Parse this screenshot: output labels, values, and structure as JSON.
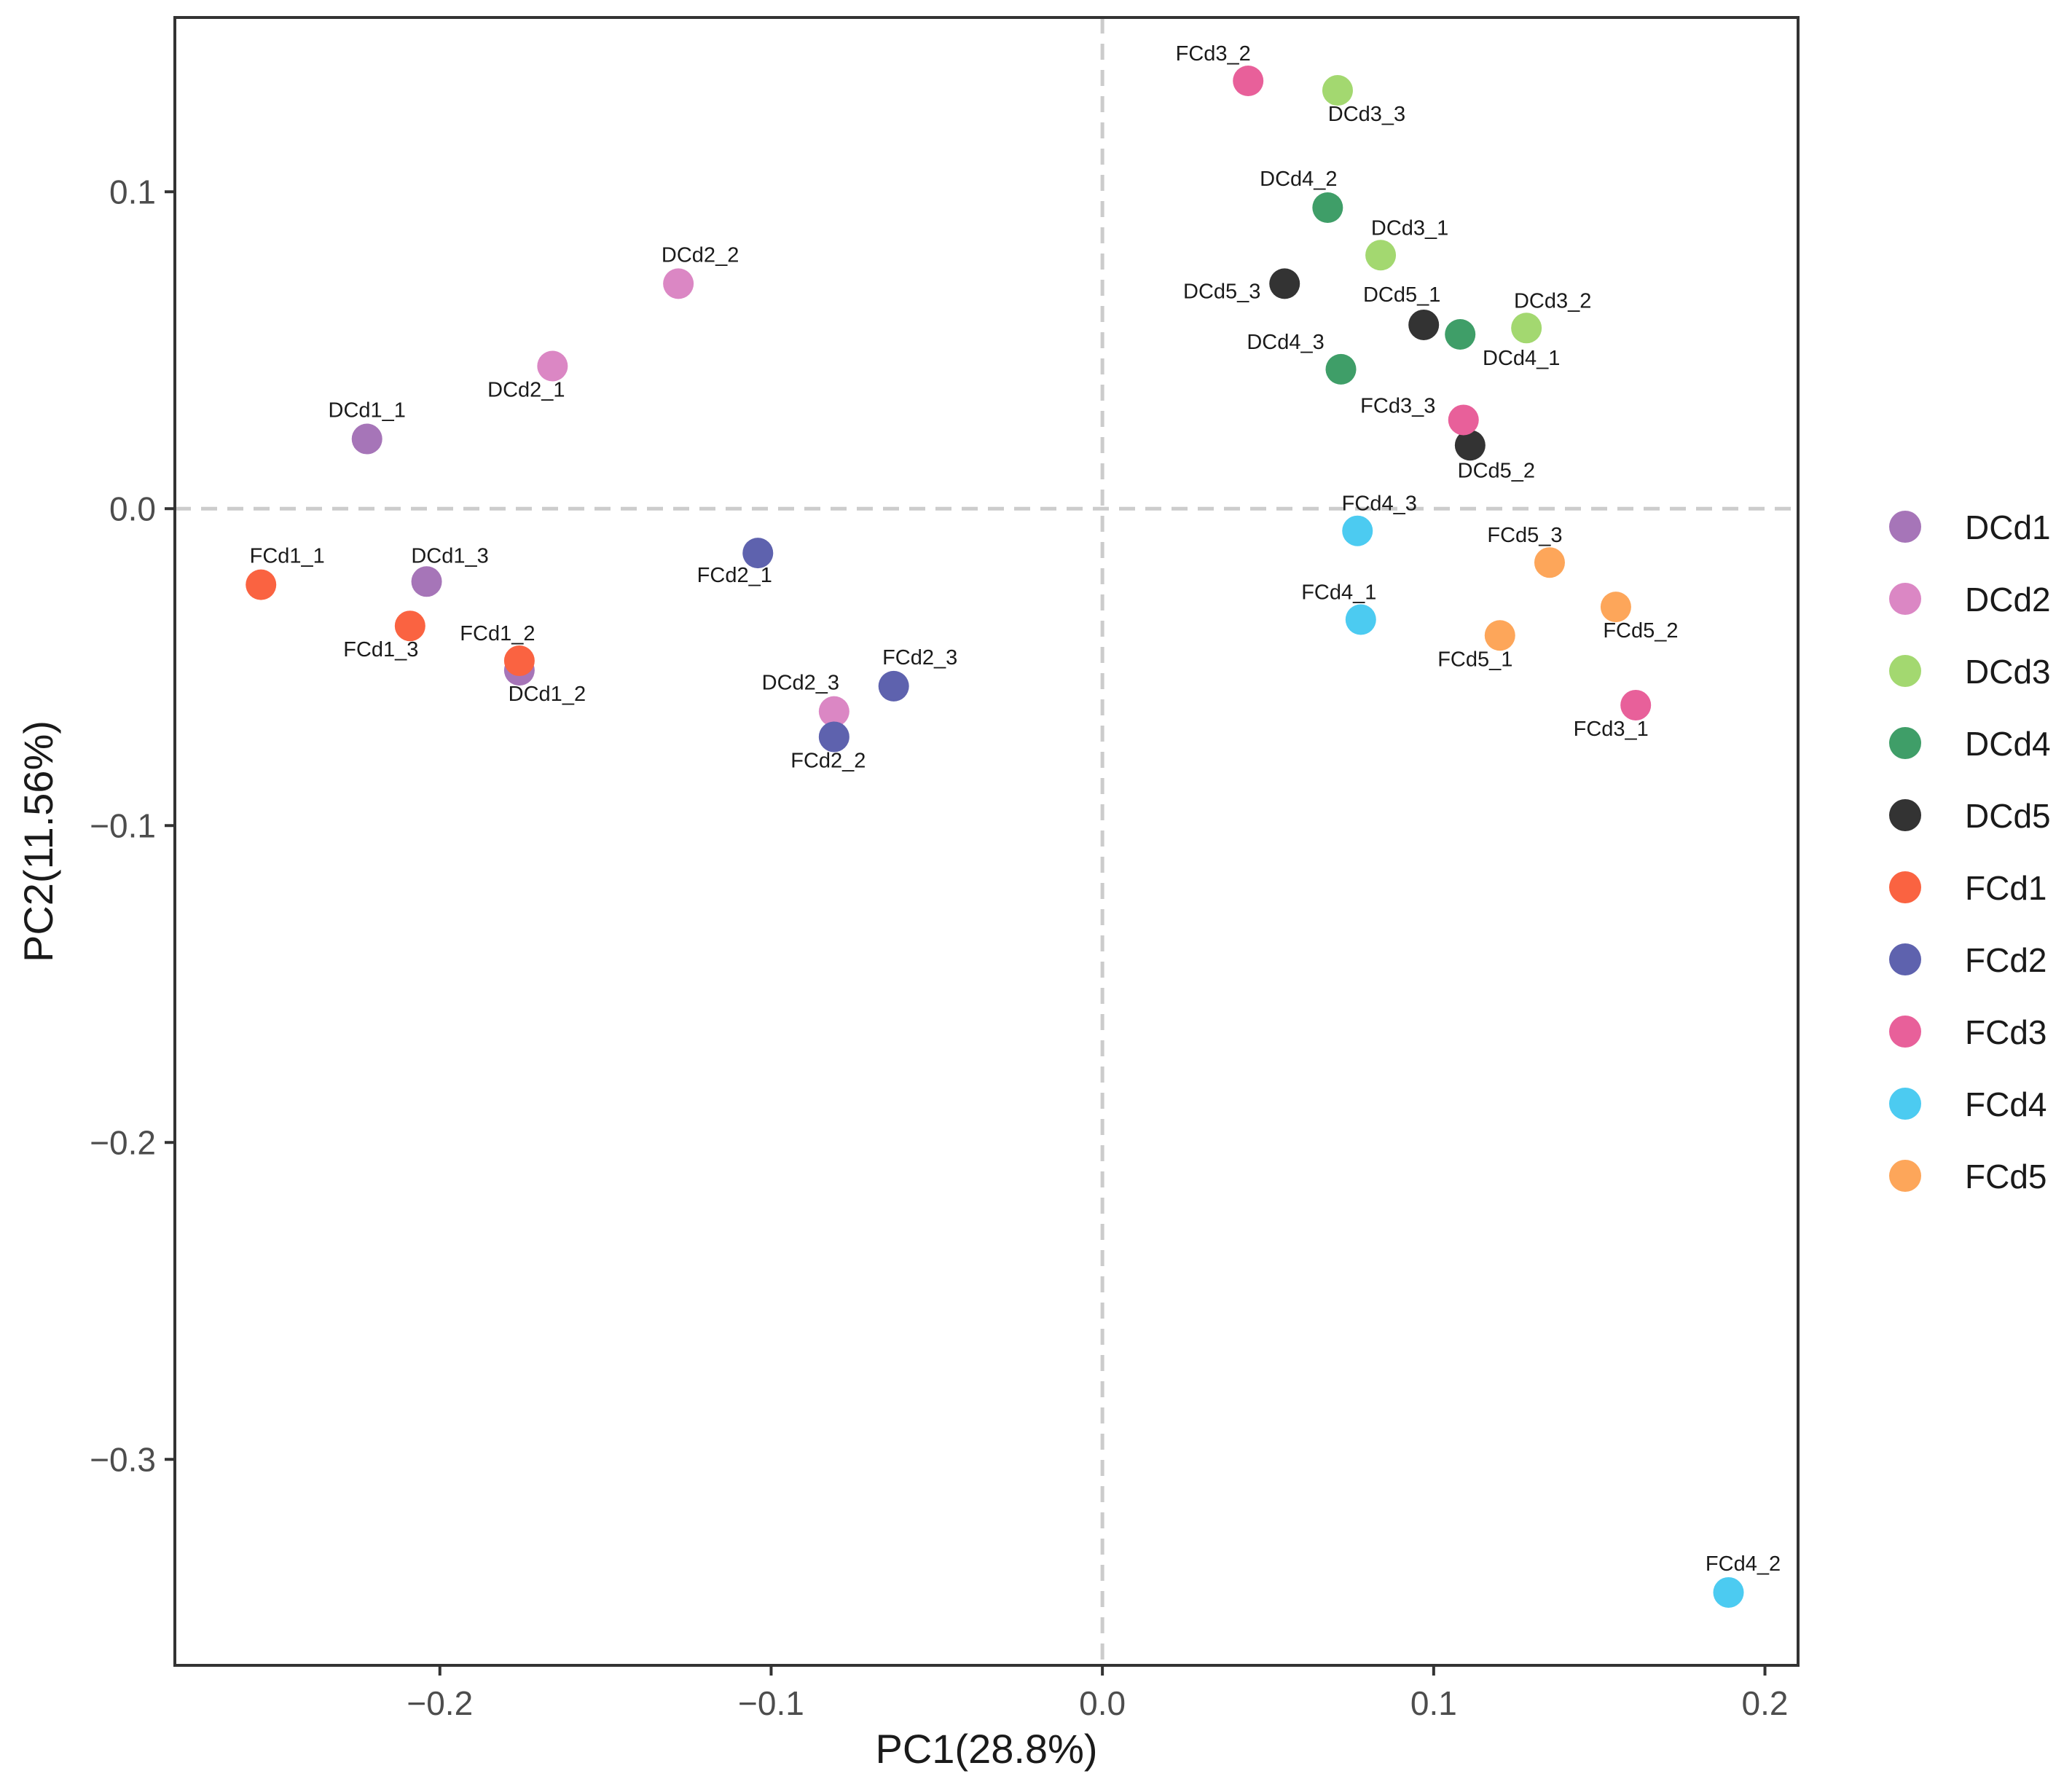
{
  "chart_data": {
    "type": "scatter",
    "title": "",
    "xlabel": "PC1(28.8%)",
    "ylabel": "PC2(11.56%)",
    "xlim": [
      -0.28,
      0.21
    ],
    "ylim": [
      -0.365,
      0.155
    ],
    "xticks": [
      -0.2,
      -0.1,
      0.0,
      0.1,
      0.2
    ],
    "xtick_labels": [
      "−0.2",
      "−0.1",
      "0.0",
      "0.1",
      "0.2"
    ],
    "yticks": [
      -0.3,
      -0.2,
      -0.1,
      0.0,
      0.1
    ],
    "ytick_labels": [
      "−0.3",
      "−0.2",
      "−0.1",
      "0.0",
      "0.1"
    ],
    "reference_lines": {
      "x": 0,
      "y": 0,
      "style": "dashed"
    },
    "grid": false,
    "legend_position": "right",
    "groups": [
      {
        "name": "DCd1",
        "color": "#A675B8"
      },
      {
        "name": "DCd2",
        "color": "#DB87C4"
      },
      {
        "name": "DCd3",
        "color": "#A3D870"
      },
      {
        "name": "DCd4",
        "color": "#3F9E68"
      },
      {
        "name": "DCd5",
        "color": "#333333"
      },
      {
        "name": "FCd1",
        "color": "#FA6341"
      },
      {
        "name": "FCd2",
        "color": "#5E62AE"
      },
      {
        "name": "FCd3",
        "color": "#E8609A"
      },
      {
        "name": "FCd4",
        "color": "#4CCBF1"
      },
      {
        "name": "FCd5",
        "color": "#FDA65A"
      }
    ],
    "points": [
      {
        "label": "DCd1_1",
        "group": "DCd1",
        "x": -0.222,
        "y": 0.022
      },
      {
        "label": "DCd1_2",
        "group": "DCd1",
        "x": -0.176,
        "y": -0.051
      },
      {
        "label": "DCd1_3",
        "group": "DCd1",
        "x": -0.204,
        "y": -0.023
      },
      {
        "label": "DCd2_1",
        "group": "DCd2",
        "x": -0.166,
        "y": 0.045
      },
      {
        "label": "DCd2_2",
        "group": "DCd2",
        "x": -0.128,
        "y": 0.071
      },
      {
        "label": "DCd2_3",
        "group": "DCd2",
        "x": -0.081,
        "y": -0.064
      },
      {
        "label": "DCd3_1",
        "group": "DCd3",
        "x": 0.084,
        "y": 0.08
      },
      {
        "label": "DCd3_2",
        "group": "DCd3",
        "x": 0.128,
        "y": 0.057
      },
      {
        "label": "DCd3_3",
        "group": "DCd3",
        "x": 0.071,
        "y": 0.132
      },
      {
        "label": "DCd4_1",
        "group": "DCd4",
        "x": 0.108,
        "y": 0.055
      },
      {
        "label": "DCd4_2",
        "group": "DCd4",
        "x": 0.068,
        "y": 0.095
      },
      {
        "label": "DCd4_3",
        "group": "DCd4",
        "x": 0.072,
        "y": 0.044
      },
      {
        "label": "DCd5_1",
        "group": "DCd5",
        "x": 0.097,
        "y": 0.058
      },
      {
        "label": "DCd5_2",
        "group": "DCd5",
        "x": 0.111,
        "y": 0.02
      },
      {
        "label": "DCd5_3",
        "group": "DCd5",
        "x": 0.055,
        "y": 0.071
      },
      {
        "label": "FCd1_1",
        "group": "FCd1",
        "x": -0.254,
        "y": -0.024
      },
      {
        "label": "FCd1_2",
        "group": "FCd1",
        "x": -0.176,
        "y": -0.048
      },
      {
        "label": "FCd1_3",
        "group": "FCd1",
        "x": -0.209,
        "y": -0.037
      },
      {
        "label": "FCd2_1",
        "group": "FCd2",
        "x": -0.104,
        "y": -0.014
      },
      {
        "label": "FCd2_2",
        "group": "FCd2",
        "x": -0.081,
        "y": -0.072
      },
      {
        "label": "FCd2_3",
        "group": "FCd2",
        "x": -0.063,
        "y": -0.056
      },
      {
        "label": "FCd3_1",
        "group": "FCd3",
        "x": 0.161,
        "y": -0.062
      },
      {
        "label": "FCd3_2",
        "group": "FCd3",
        "x": 0.044,
        "y": 0.135
      },
      {
        "label": "FCd3_3",
        "group": "FCd3",
        "x": 0.109,
        "y": 0.028
      },
      {
        "label": "FCd4_1",
        "group": "FCd4",
        "x": 0.078,
        "y": -0.035
      },
      {
        "label": "FCd4_2",
        "group": "FCd4",
        "x": 0.189,
        "y": -0.342
      },
      {
        "label": "FCd4_3",
        "group": "FCd4",
        "x": 0.077,
        "y": -0.007
      },
      {
        "label": "FCd5_1",
        "group": "FCd5",
        "x": 0.12,
        "y": -0.04
      },
      {
        "label": "FCd5_2",
        "group": "FCd5",
        "x": 0.155,
        "y": -0.031
      },
      {
        "label": "FCd5_3",
        "group": "FCd5",
        "x": 0.135,
        "y": -0.017
      }
    ]
  }
}
